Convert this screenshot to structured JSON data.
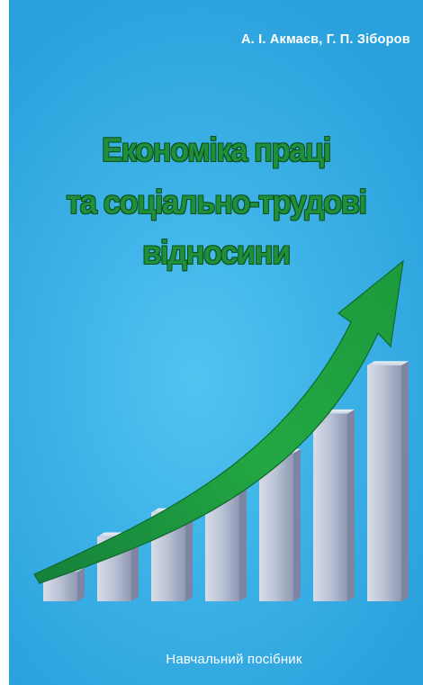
{
  "cover": {
    "authors": "А. І. Акмаєв, Г. П. Зіборов",
    "title_lines": [
      "Економіка праці",
      "та соціально-трудові",
      "відносини"
    ],
    "subtitle": "Навчальний посібник"
  },
  "colors": {
    "background": "#3eb3e8",
    "title": "#1f8f3c",
    "arrow": "#1e9e3c",
    "bars": "#b7c0d6"
  },
  "illustration": {
    "bar_levels": [
      0.06,
      0.22,
      0.33,
      0.45,
      0.6,
      0.78,
      1.0
    ]
  }
}
